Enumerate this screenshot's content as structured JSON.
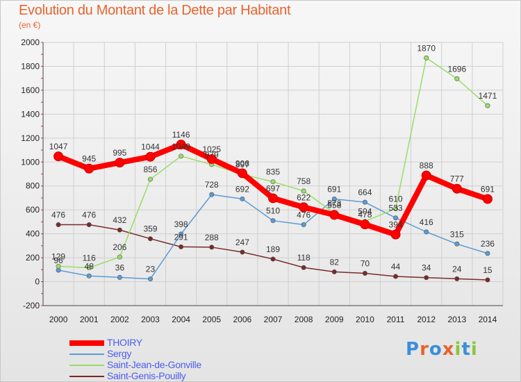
{
  "chart_data": {
    "type": "line",
    "title": "Evolution du Montant de la Dette par Habitant",
    "subtitle": "(en €)",
    "x": [
      "2000",
      "2001",
      "2002",
      "2003",
      "2004",
      "2005",
      "2006",
      "2007",
      "2008",
      "2009",
      "2010",
      "2011",
      "2012",
      "2013",
      "2014"
    ],
    "y_ticks": [
      "2000",
      "1800",
      "1600",
      "1400",
      "1200",
      "1000",
      "800",
      "600",
      "400",
      "200",
      "0",
      "-200"
    ],
    "ylim": [
      -200,
      2000
    ],
    "grid": true,
    "legend_position": "bottom-left",
    "series": [
      {
        "name": "THOIRY",
        "color": "#ff0000",
        "values": [
          1047,
          945,
          995,
          1044,
          1146,
          1025,
          906,
          697,
          622,
          558,
          478,
          394,
          888,
          777,
          691
        ],
        "labels": [
          "1047",
          "945",
          "995",
          "1044",
          "1146",
          "1025",
          "906",
          "697",
          "622",
          "558",
          "478",
          "394",
          "888",
          "777",
          "691"
        ]
      },
      {
        "name": "Sergy",
        "color": "#5b9bd5",
        "values": [
          96,
          48,
          36,
          23,
          398,
          728,
          692,
          510,
          476,
          691,
          664,
          533,
          416,
          315,
          236
        ],
        "labels": [
          "96",
          "48",
          "36",
          "23",
          "398",
          "728",
          "692",
          "510",
          "476",
          "691",
          "664",
          "533",
          "416",
          "315",
          "236"
        ]
      },
      {
        "name": "Saint-Jean-de-Gonville",
        "color": "#99dd66",
        "values": [
          129,
          116,
          206,
          856,
          1049,
          979,
          897,
          835,
          758,
          573,
          504,
          610,
          1870,
          1696,
          1471
        ],
        "labels": [
          "129",
          "116",
          "206",
          "856",
          "1049",
          "979",
          "897",
          "835",
          "758",
          "573",
          "504",
          "610",
          "1870",
          "1696",
          "1471"
        ]
      },
      {
        "name": "Saint-Genis-Pouilly",
        "color": "#7a2a2a",
        "values": [
          476,
          476,
          432,
          359,
          291,
          288,
          247,
          189,
          118,
          82,
          70,
          44,
          34,
          24,
          15
        ],
        "labels": [
          "476",
          "476",
          "432",
          "359",
          "291",
          "288",
          "247",
          "189",
          "118",
          "82",
          "70",
          "44",
          "34",
          "24",
          "15"
        ]
      }
    ]
  },
  "logo": {
    "letters": [
      {
        "char": "P",
        "color": "#3a8fd8"
      },
      {
        "char": "r",
        "color": "#e8632e"
      },
      {
        "char": "o",
        "color": "#3a8fd8"
      },
      {
        "char": "x",
        "color": "#e8632e"
      },
      {
        "char": "i",
        "color": "#8cc63f"
      },
      {
        "char": "t",
        "color": "#3a8fd8"
      },
      {
        "char": "i",
        "color": "#8cc63f"
      }
    ]
  }
}
